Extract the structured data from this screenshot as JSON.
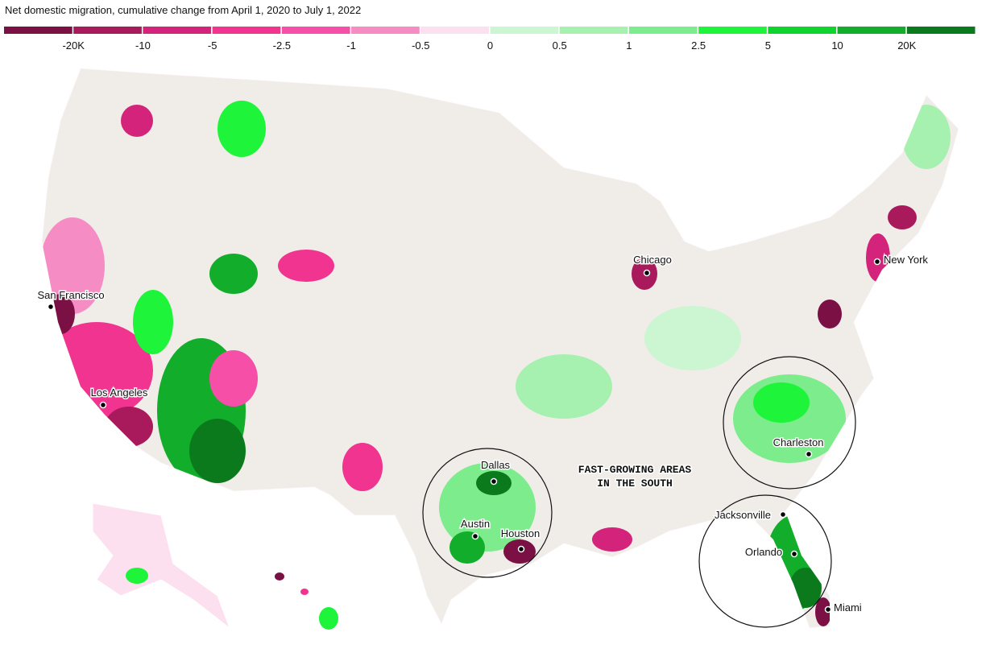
{
  "title": "Net domestic migration, cumulative change from April 1, 2020 to July 1, 2022",
  "legend": {
    "colors": [
      "#7b1045",
      "#a81a5c",
      "#d4237a",
      "#f0348f",
      "#f54fa8",
      "#f58cc4",
      "#fde0ef",
      "#ccf5d2",
      "#a6f0b0",
      "#7cec8c",
      "#1ef53a",
      "#0fd42e",
      "#12ad2a",
      "#0b7a1c"
    ],
    "labels": [
      "-20K",
      "-10",
      "-5",
      "-2.5",
      "-1",
      "-0.5",
      "0",
      "0.5",
      "1",
      "2.5",
      "5",
      "10",
      "20K"
    ]
  },
  "cities": [
    "San Francisco",
    "Los Angeles",
    "Chicago",
    "New York",
    "Dallas",
    "Austin",
    "Houston",
    "Charleston",
    "Jacksonville",
    "Orlando",
    "Miami"
  ],
  "annotation": [
    "FAST-GROWING AREAS",
    "IN THE SOUTH"
  ]
}
